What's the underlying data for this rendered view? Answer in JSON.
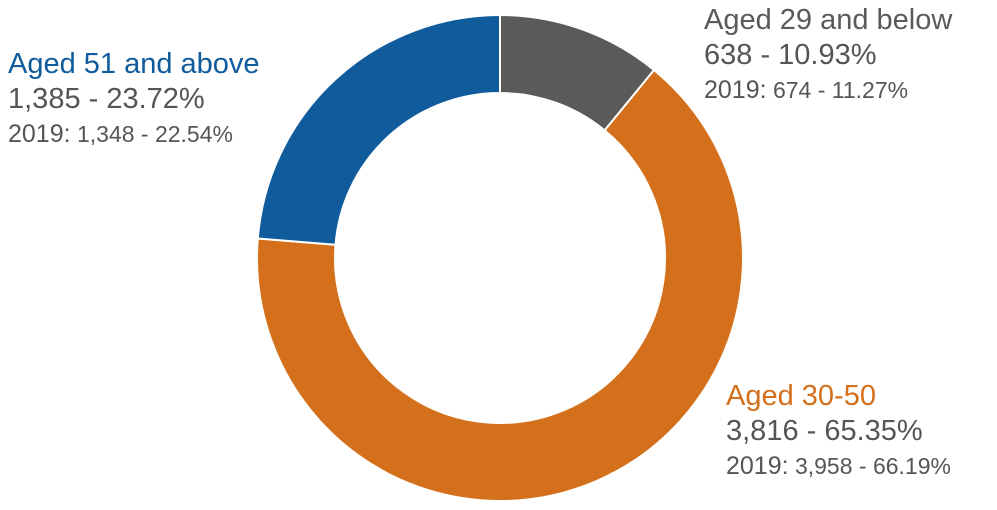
{
  "chart_data": {
    "type": "pie",
    "variant": "donut",
    "title": "",
    "slices": [
      {
        "name": "Aged 29 and below",
        "value": 638,
        "value_label": "638 - 10.93%",
        "percent": 10.93,
        "prev_prefix": "2019:",
        "prev_text": "674 - 11.27%",
        "prev_value": 674,
        "prev_percent": 11.27,
        "color": "#5a5a5a",
        "label_color": "#5a5a5a"
      },
      {
        "name": "Aged 30-50",
        "value": 3816,
        "value_label": "3,816 - 65.35%",
        "percent": 65.35,
        "prev_prefix": "2019:",
        "prev_text": "3,958 - 66.19%",
        "prev_value": 3958,
        "prev_percent": 66.19,
        "color": "#d4701c",
        "label_color": "#d4701c"
      },
      {
        "name": "Aged 51 and above",
        "value": 1385,
        "value_label": "1,385 - 23.72%",
        "percent": 23.72,
        "prev_prefix": "2019:",
        "prev_text": "1,348 - 22.54%",
        "prev_value": 1348,
        "prev_percent": 22.54,
        "color": "#0f5b9c",
        "label_color": "#0f5b9c"
      }
    ],
    "start_angle_deg": 0,
    "direction": "clockwise",
    "legend": "none"
  }
}
